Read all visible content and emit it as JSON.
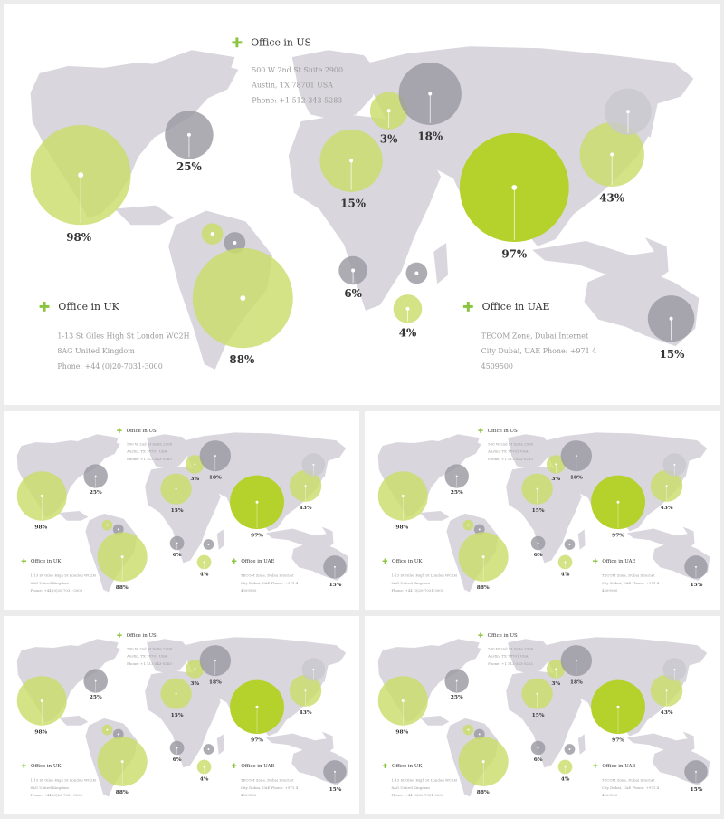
{
  "colors": {
    "land": "#d9d6de",
    "green_light": "#c9dd6a",
    "green_strong": "#b5d22c",
    "grey_bubble": "#9b9aa2",
    "accent_plus": "#8bc53f",
    "text_dark": "#333333",
    "text_muted": "#9a9a9a",
    "background": "#ececec"
  },
  "slides": [
    {
      "name": "main-slide"
    },
    {
      "name": "thumb-1"
    },
    {
      "name": "thumb-2"
    },
    {
      "name": "thumb-3"
    },
    {
      "name": "thumb-4"
    }
  ],
  "offices": {
    "us": {
      "title": "Office in US",
      "lines": [
        "500 W 2nd St Suite 2900",
        "Austin, TX 78701 USA",
        "Phone: +1 512-343-5283"
      ]
    },
    "uk": {
      "title": "Office in UK",
      "lines": [
        "1-13 St Giles High St London WC2H",
        "8AG United Kingdom",
        "Phone: +44 (0)20-7031-3000"
      ]
    },
    "uae": {
      "title": "Office in UAE",
      "lines": [
        "TECOM Zone, Dubai Internet",
        "City Dubai, UAE Phone: +971 4",
        "4509500"
      ]
    }
  },
  "bubbles": [
    {
      "id": "north-america",
      "value": "98%",
      "color": "green_light"
    },
    {
      "id": "greenland",
      "value": "25%",
      "color": "grey"
    },
    {
      "id": "caribbean",
      "value": "",
      "color": "green_light"
    },
    {
      "id": "colombia",
      "value": "",
      "color": "grey"
    },
    {
      "id": "south-america",
      "value": "88%",
      "color": "green_light"
    },
    {
      "id": "north-africa",
      "value": "15%",
      "color": "green_light"
    },
    {
      "id": "europe",
      "value": "3%",
      "color": "green_light"
    },
    {
      "id": "russia",
      "value": "18%",
      "color": "grey"
    },
    {
      "id": "west-africa",
      "value": "6%",
      "color": "grey"
    },
    {
      "id": "east-africa",
      "value": "",
      "color": "grey"
    },
    {
      "id": "south-africa",
      "value": "4%",
      "color": "green_light"
    },
    {
      "id": "asia",
      "value": "97%",
      "color": "green_strong"
    },
    {
      "id": "east-asia",
      "value": "43%",
      "color": "green_light"
    },
    {
      "id": "japan",
      "value": "",
      "color": "grey_light"
    },
    {
      "id": "australia",
      "value": "15%",
      "color": "grey"
    }
  ]
}
